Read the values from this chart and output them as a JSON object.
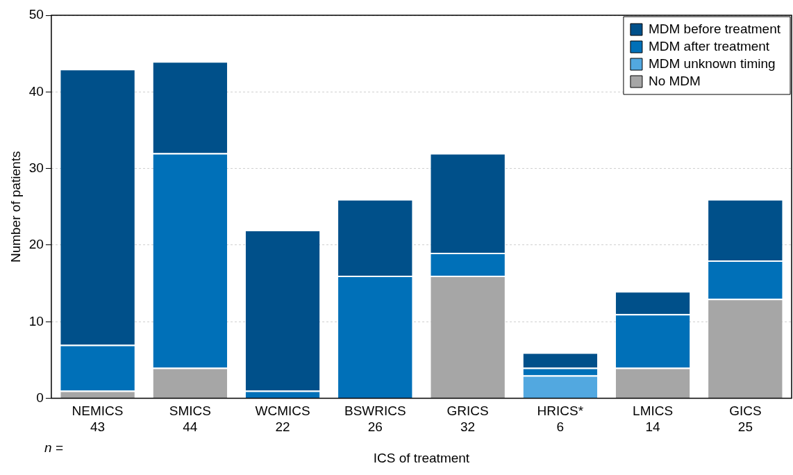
{
  "chart_data": {
    "type": "bar",
    "stacked": true,
    "categories": [
      "NEMICS\n43",
      "SMICS\n44",
      "WCMICS\n22",
      "BSWRICS\n26",
      "GRICS\n32",
      "HRICS*\n6",
      "LMICS\n14",
      "GICS\n25"
    ],
    "series": [
      {
        "name": "No MDM",
        "color": "#a6a6a6",
        "values": [
          1,
          4,
          0,
          0,
          16,
          0,
          4,
          13
        ]
      },
      {
        "name": "MDM unknown timing",
        "color": "#52a8e0",
        "values": [
          0,
          0,
          0,
          0,
          0,
          3,
          0,
          0
        ]
      },
      {
        "name": "MDM after treatment",
        "color": "#0070b8",
        "values": [
          6,
          28,
          1,
          16,
          3,
          1,
          7,
          5
        ]
      },
      {
        "name": "MDM before treatment",
        "color": "#00508a",
        "values": [
          36,
          12,
          21,
          10,
          13,
          2,
          3,
          8
        ]
      }
    ],
    "xlabel": "ICS of treatment",
    "ylabel": "Number of patients",
    "ylim": [
      0,
      50
    ],
    "yticks": [
      0,
      10,
      20,
      30,
      40,
      50
    ],
    "grid": "y",
    "legend": "top right",
    "annotations": [
      "n ="
    ]
  }
}
